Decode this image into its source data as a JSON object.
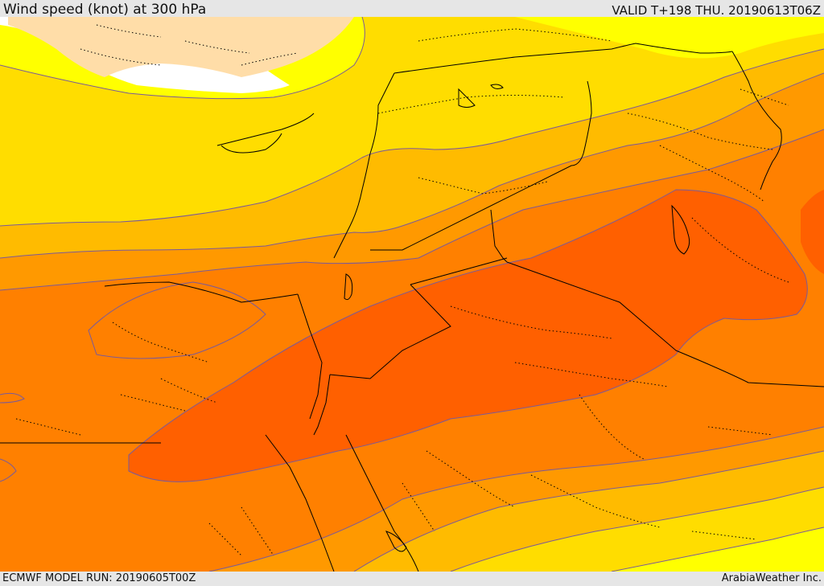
{
  "header": {
    "title": "Wind speed (knot) at 300 hPa",
    "valid": "VALID T+198 THU. 20190613T06Z"
  },
  "footer": {
    "model_run": "ECMWF MODEL RUN: 20190605T00Z",
    "credit": "ArabiaWeather Inc."
  },
  "map": {
    "fill_colors": {
      "land_below_threshold": "#ffdda8",
      "sea_below_threshold": "#ffffff",
      "band_1": "#ffff00",
      "band_2": "#ffdd00",
      "band_3": "#ffbb00",
      "band_4": "#ff9900",
      "band_5": "#ff8000",
      "band_6": "#ff6000"
    },
    "contour_color": "#7a5a9a",
    "border_color": "#000000"
  }
}
